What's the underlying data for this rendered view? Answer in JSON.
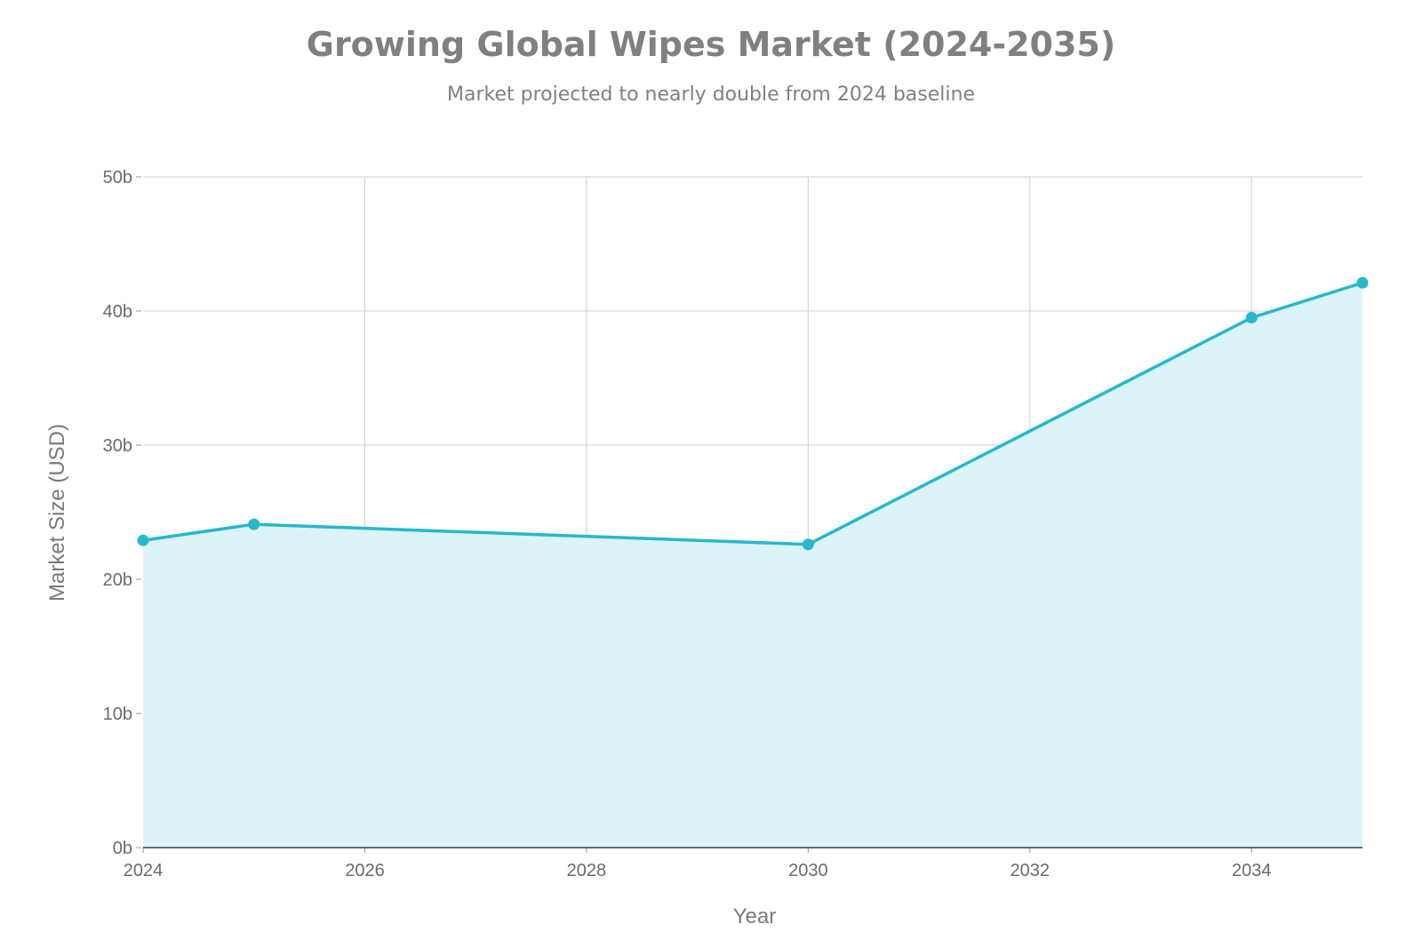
{
  "chart_data": {
    "type": "area",
    "title": "Growing Global Wipes Market (2024-2035)",
    "subtitle": "Market projected to nearly double from 2024 baseline",
    "xlabel": "Year",
    "ylabel": "Market Size (USD)",
    "xlim": [
      2024,
      2035
    ],
    "ylim": [
      0,
      50
    ],
    "x_ticks": [
      2024,
      2026,
      2028,
      2030,
      2032,
      2034
    ],
    "x_tick_labels": [
      "2024",
      "2026",
      "2028",
      "2030",
      "2032",
      "2034"
    ],
    "y_ticks": [
      0,
      10,
      20,
      30,
      40,
      50
    ],
    "y_tick_labels": [
      "0b",
      "10b",
      "20b",
      "30b",
      "40b",
      "50b"
    ],
    "grid": true,
    "legend": false,
    "colors": {
      "line": "#26b8cc",
      "fill": "#dcf4f7",
      "grid": "#cfcfcf",
      "text": "#808080"
    },
    "series": [
      {
        "x": [
          2024,
          2025,
          2030,
          2034,
          2035
        ],
        "values": [
          22.9,
          24.1,
          22.6,
          39.5,
          42.1
        ]
      }
    ]
  }
}
